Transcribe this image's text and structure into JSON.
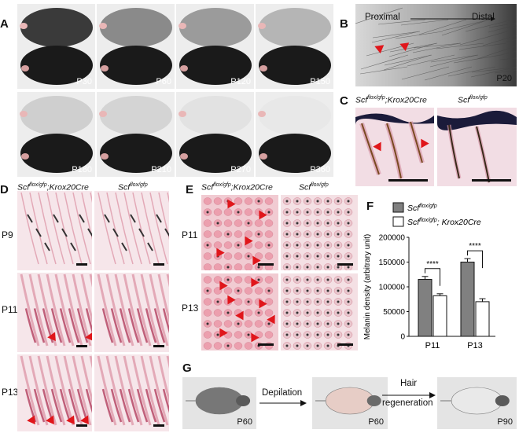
{
  "panels": {
    "A": {
      "label": "A",
      "ages": [
        "P30",
        "P60",
        "P120",
        "P150",
        "P180",
        "P210",
        "P270",
        "P360"
      ]
    },
    "B": {
      "label": "B",
      "proximal": "Proximal",
      "distal": "Distal",
      "age": "P20"
    },
    "C": {
      "label": "C",
      "geno1": "Scf",
      "geno1_sup": "flox/gfp",
      "geno1_suffix": ";Krox20Cre",
      "geno2": "Scf",
      "geno2_sup": "flox/gfp"
    },
    "D": {
      "label": "D",
      "geno1": "Scf",
      "geno1_sup": "flox/gfp",
      "geno1_suffix": ";Krox20Cre",
      "geno2": "Scf",
      "geno2_sup": "flox/gfp",
      "rows": [
        "P9",
        "P11",
        "P13"
      ]
    },
    "E": {
      "label": "E",
      "geno1": "Scf",
      "geno1_sup": "flox/gfp",
      "geno1_suffix": ";Krox20Cre",
      "geno2": "Scf",
      "geno2_sup": "flox/gfp",
      "rows": [
        "P11",
        "P13"
      ]
    },
    "F": {
      "label": "F"
    },
    "G": {
      "label": "G",
      "step1": "Depilation",
      "step2_line1": "Hair",
      "step2_line2": "regeneration",
      "ages": [
        "P60",
        "P60",
        "P90"
      ]
    }
  },
  "chart_data": {
    "type": "bar",
    "categories": [
      "P11",
      "P13"
    ],
    "series": [
      {
        "name": "Scf flox/gfp",
        "color": "#808080",
        "values": [
          115000,
          150000
        ],
        "errors": [
          6000,
          7000
        ]
      },
      {
        "name": "Scf flox/gfp; Krox20Cre",
        "color": "#ffffff",
        "values": [
          82000,
          70000
        ],
        "errors": [
          4000,
          6000
        ]
      }
    ],
    "legend": [
      {
        "base": "Scf",
        "sup": "flox/gfp",
        "suffix": ""
      },
      {
        "base": "Scf",
        "sup": "flox/gfp",
        "suffix": "; Krox20Cre"
      }
    ],
    "significance": [
      "****",
      "****"
    ],
    "ylabel": "Melanin density (arbitrary unit)",
    "ylim": [
      0,
      200000
    ],
    "yticks": [
      "0",
      "50000",
      "100000",
      "150000",
      "200000"
    ],
    "legend_position": "top"
  }
}
